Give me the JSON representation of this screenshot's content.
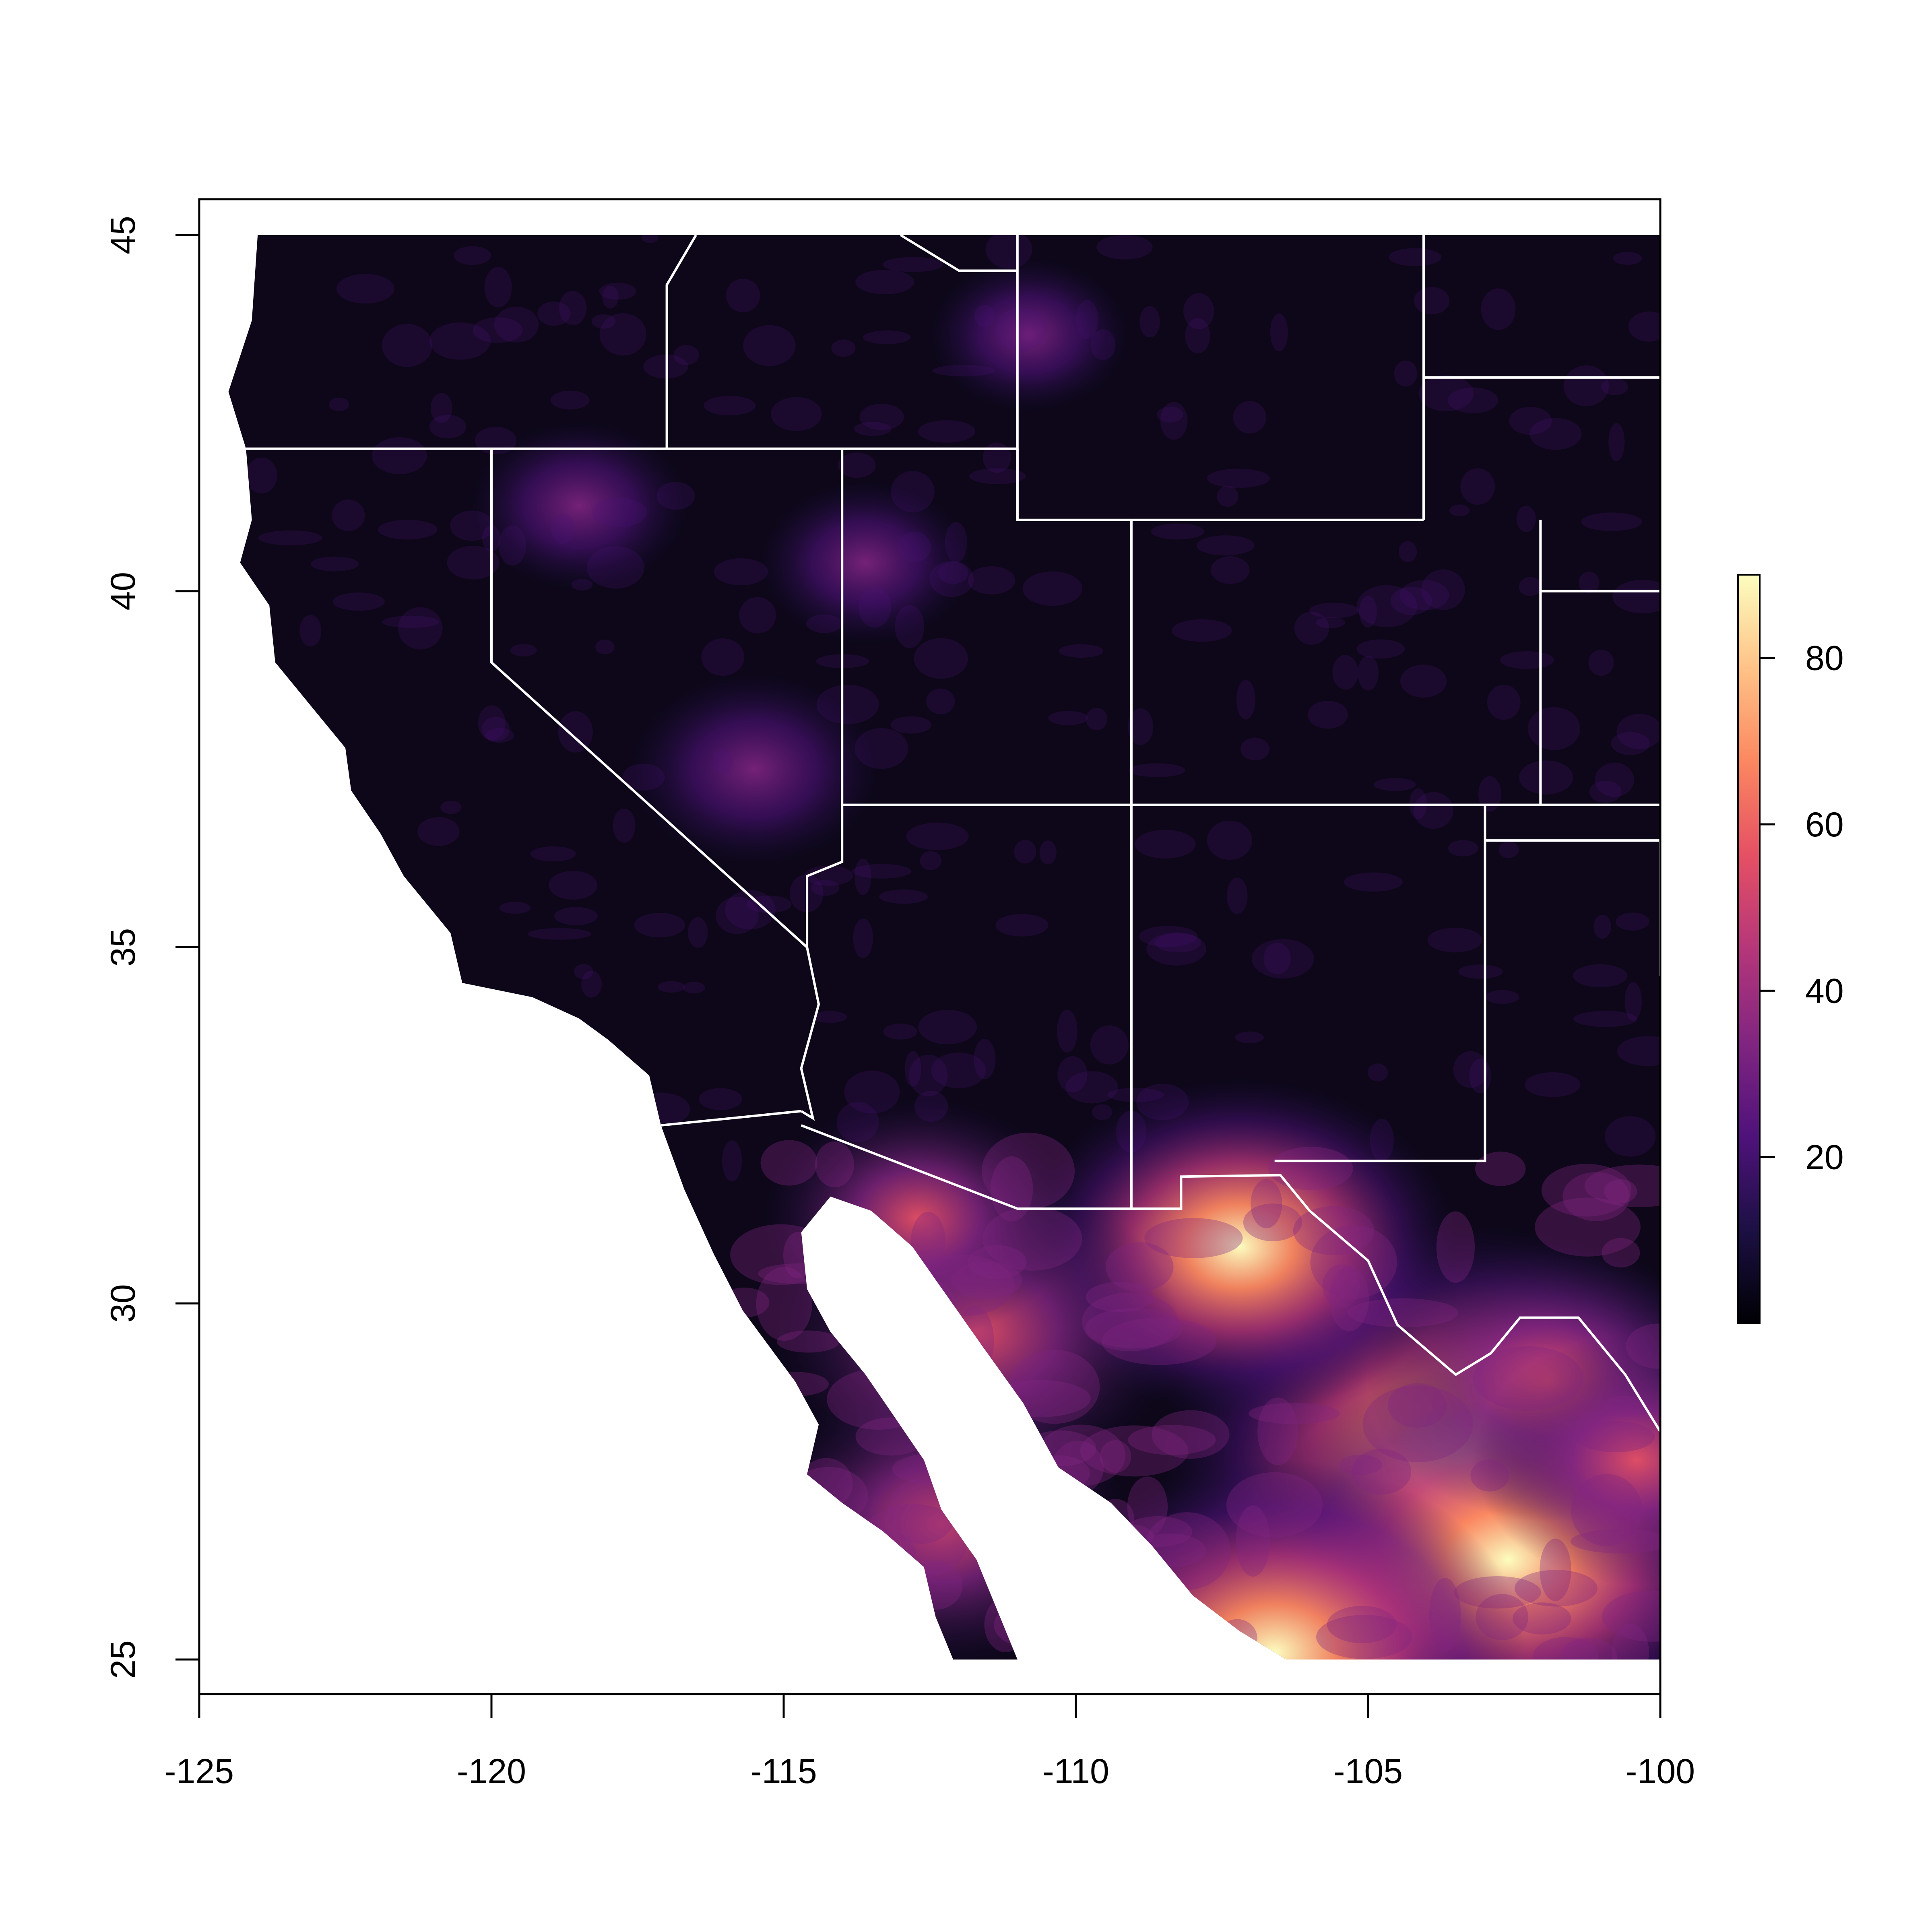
{
  "map": {
    "type": "raster-map",
    "projection": "longitude-latitude",
    "x_axis": {
      "range": [
        -125,
        -100
      ],
      "ticks": [
        -125,
        -120,
        -115,
        -110,
        -105,
        -100
      ],
      "tick_labels": [
        "-125",
        "-120",
        "-115",
        "-110",
        "-105",
        "-100"
      ]
    },
    "y_axis": {
      "range": [
        25,
        45
      ],
      "ticks": [
        25,
        30,
        35,
        40,
        45
      ],
      "tick_labels": [
        "25",
        "30",
        "35",
        "40",
        "45"
      ]
    },
    "colorbar": {
      "palette": "magma",
      "range": [
        0,
        90
      ],
      "ticks": [
        20,
        40,
        60,
        80
      ],
      "tick_labels": [
        "20",
        "40",
        "60",
        "80"
      ],
      "colors": [
        "#000004",
        "#1c1044",
        "#4f127b",
        "#812581",
        "#b5367a",
        "#e55064",
        "#fb8761",
        "#fec287",
        "#fcfdbf"
      ]
    },
    "boundary_color": "#ffffff",
    "background_color": "#0d0719",
    "hotspots": [
      {
        "lon": -103.3,
        "lat": 27.8,
        "value": 88
      },
      {
        "lon": -102.6,
        "lat": 26.4,
        "value": 72
      },
      {
        "lon": -106.6,
        "lat": 25.1,
        "value": 70
      },
      {
        "lon": -107.2,
        "lat": 30.8,
        "value": 60
      },
      {
        "lon": -111.7,
        "lat": 29.6,
        "value": 55
      },
      {
        "lon": -112.3,
        "lat": 26.9,
        "value": 50
      },
      {
        "lon": -101.9,
        "lat": 28.9,
        "value": 48
      },
      {
        "lon": -100.4,
        "lat": 27.8,
        "value": 42
      },
      {
        "lon": -112.7,
        "lat": 31.2,
        "value": 40
      },
      {
        "lon": -115.5,
        "lat": 37.5,
        "value": 30
      },
      {
        "lon": -118.5,
        "lat": 41.2,
        "value": 25
      },
      {
        "lon": -113.6,
        "lat": 40.4,
        "value": 24
      },
      {
        "lon": -110.8,
        "lat": 43.6,
        "value": 22
      }
    ]
  }
}
